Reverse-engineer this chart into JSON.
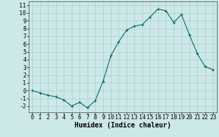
{
  "x": [
    0,
    1,
    2,
    3,
    4,
    5,
    6,
    7,
    8,
    9,
    10,
    11,
    12,
    13,
    14,
    15,
    16,
    17,
    18,
    19,
    20,
    21,
    22,
    23
  ],
  "y": [
    0.0,
    -0.3,
    -0.6,
    -0.8,
    -1.2,
    -2.0,
    -1.5,
    -2.2,
    -1.3,
    1.2,
    4.5,
    6.3,
    7.8,
    8.3,
    8.5,
    9.5,
    10.5,
    10.3,
    8.8,
    9.8,
    7.2,
    4.8,
    3.1,
    2.7
  ],
  "line_color": "#006666",
  "marker": "+",
  "markersize": 3,
  "linewidth": 0.8,
  "bg_color": "#cce8e8",
  "grid_color": "#aacccc",
  "xlabel": "Humidex (Indice chaleur)",
  "xlim": [
    -0.5,
    23.5
  ],
  "ylim": [
    -2.8,
    11.5
  ],
  "yticks": [
    -2,
    -1,
    0,
    1,
    2,
    3,
    4,
    5,
    6,
    7,
    8,
    9,
    10,
    11
  ],
  "xticks": [
    0,
    1,
    2,
    3,
    4,
    5,
    6,
    7,
    8,
    9,
    10,
    11,
    12,
    13,
    14,
    15,
    16,
    17,
    18,
    19,
    20,
    21,
    22,
    23
  ],
  "tick_fontsize": 6,
  "xlabel_fontsize": 7
}
